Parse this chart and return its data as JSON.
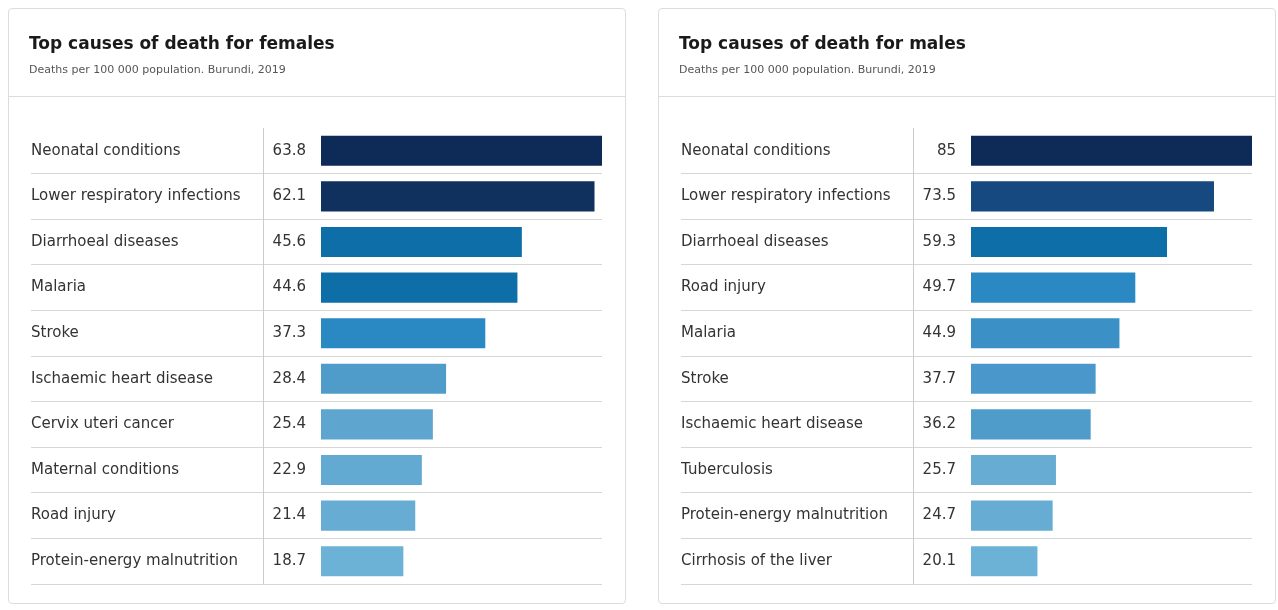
{
  "chart_data": [
    {
      "type": "bar",
      "orientation": "horizontal",
      "title": "Top causes of death for females",
      "subtitle": "Deaths per 100 000 population. Burundi, 2019",
      "categories": [
        "Neonatal conditions",
        "Lower respiratory infections",
        "Diarrhoeal diseases",
        "Malaria",
        "Stroke",
        "Ischaemic heart disease",
        "Cervix uteri cancer",
        "Maternal conditions",
        "Road injury",
        "Protein-energy malnutrition"
      ],
      "values": [
        63.8,
        62.1,
        45.6,
        44.6,
        37.3,
        28.4,
        25.4,
        22.9,
        21.4,
        18.7
      ],
      "colors": [
        "#0e2a56",
        "#10305e",
        "#0e6fa8",
        "#0e6fa8",
        "#2a88c2",
        "#4f9ccb",
        "#5ea5cf",
        "#63aad2",
        "#66acd3",
        "#6cb2d6"
      ],
      "data_labels": true,
      "grid": "y",
      "legend": false
    },
    {
      "type": "bar",
      "orientation": "horizontal",
      "title": "Top causes of death for males",
      "subtitle": "Deaths per 100 000 population. Burundi, 2019",
      "categories": [
        "Neonatal conditions",
        "Lower respiratory infections",
        "Diarrhoeal diseases",
        "Road injury",
        "Malaria",
        "Stroke",
        "Ischaemic heart disease",
        "Tuberculosis",
        "Protein-energy malnutrition",
        "Cirrhosis of the liver"
      ],
      "values": [
        85,
        73.5,
        59.3,
        49.7,
        44.9,
        37.7,
        36.2,
        25.7,
        24.7,
        20.1
      ],
      "colors": [
        "#0e2a56",
        "#16497f",
        "#0e6fa8",
        "#2a88c2",
        "#3b90c6",
        "#4a98cb",
        "#4f9ccb",
        "#66acd3",
        "#66acd3",
        "#6cb2d6"
      ],
      "data_labels": true,
      "grid": "y",
      "legend": false
    }
  ]
}
